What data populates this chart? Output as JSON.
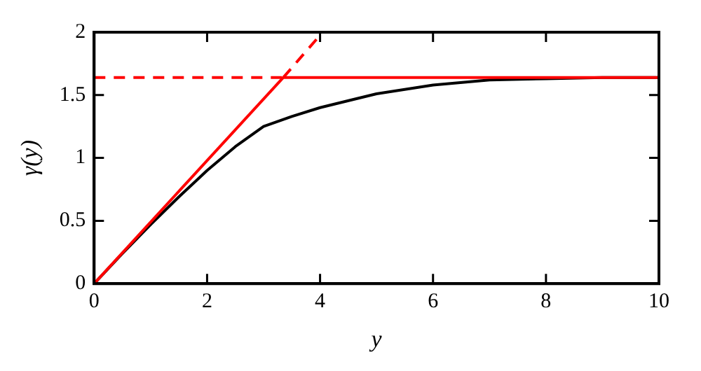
{
  "chart_data": {
    "type": "line",
    "xlabel": "y",
    "ylabel": "γ(y)",
    "xlim": [
      0,
      10
    ],
    "ylim": [
      0,
      2
    ],
    "xticks": [
      0,
      2,
      4,
      6,
      8,
      10
    ],
    "yticks": [
      0,
      0.5,
      1,
      1.5,
      2
    ],
    "grid": false,
    "legend": false,
    "marker": "none",
    "series": [
      {
        "color": "#000000",
        "line_style": "solid",
        "x": [
          0,
          0.5,
          1,
          1.5,
          2,
          2.5,
          3,
          3.5,
          4,
          5,
          6,
          7,
          8,
          9,
          10
        ],
        "values": [
          0,
          0.24,
          0.47,
          0.69,
          0.9,
          1.09,
          1.25,
          1.33,
          1.4,
          1.51,
          1.58,
          1.62,
          1.63,
          1.64,
          1.64
        ]
      },
      {
        "color": "#ff0000",
        "line_style": "solid",
        "x": [
          0,
          3.35,
          10
        ],
        "values": [
          0,
          1.64,
          1.64
        ]
      },
      {
        "color": "#ff0000",
        "line_style": "dashed",
        "x": [
          0,
          3.35
        ],
        "values": [
          1.64,
          1.64
        ]
      },
      {
        "color": "#ff0000",
        "line_style": "dashed",
        "x": [
          3.35,
          3.95
        ],
        "values": [
          1.64,
          1.95
        ]
      }
    ]
  }
}
